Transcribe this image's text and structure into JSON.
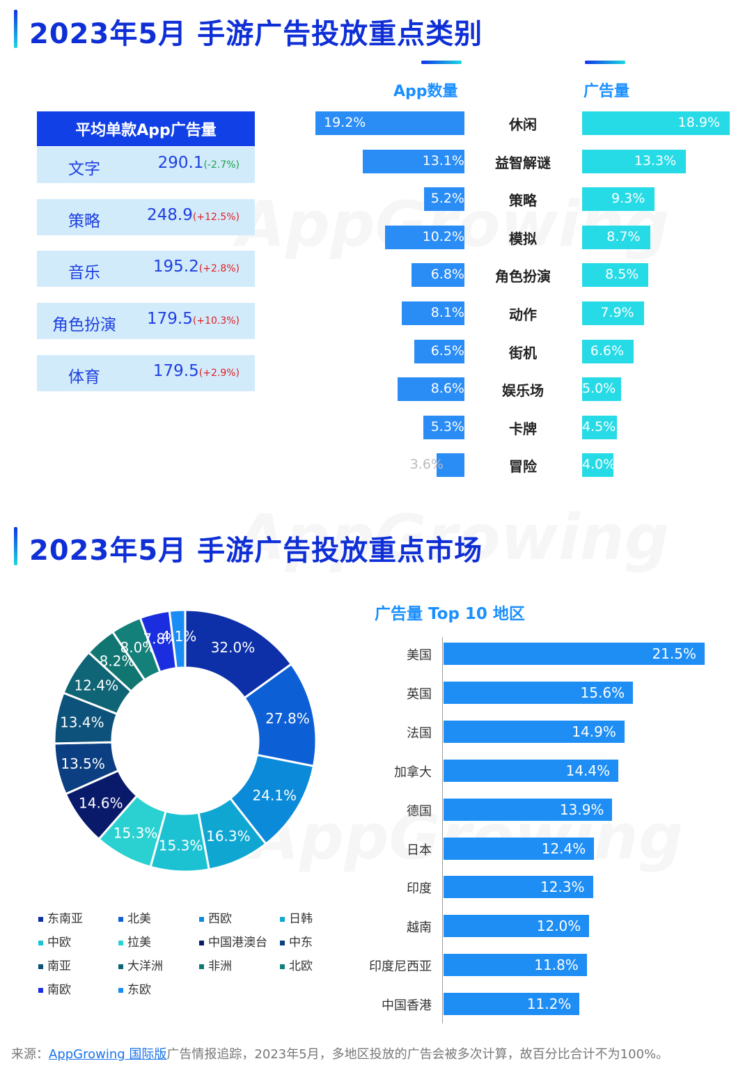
{
  "section1": {
    "title": "2023年5月  手游广告投放重点类别"
  },
  "section2": {
    "title": "2023年5月  手游广告投放重点市场"
  },
  "watermark": "AppGrowing",
  "avg_table": {
    "header": "平均单款App广告量",
    "rows": [
      {
        "name": "文字",
        "value": "290.1",
        "change": "(-2.7%)",
        "color": "#19a34a"
      },
      {
        "name": "策略",
        "value": "248.9",
        "change": "(+12.5%)",
        "color": "#e02020"
      },
      {
        "name": "音乐",
        "value": "195.2",
        "change": "(+2.8%)",
        "color": "#e02020"
      },
      {
        "name": "角色扮演",
        "value": "179.5",
        "change": "(+10.3%)",
        "color": "#e02020"
      },
      {
        "name": "体育",
        "value": "179.5",
        "change": "(+2.9%)",
        "color": "#e02020"
      }
    ]
  },
  "chart_data": [
    {
      "type": "bar",
      "title": "手游广告投放重点类别",
      "categories": [
        "休闲",
        "益智解谜",
        "策略",
        "模拟",
        "角色扮演",
        "动作",
        "街机",
        "娱乐场",
        "卡牌",
        "冒险"
      ],
      "series": [
        {
          "name": "App数量",
          "values": [
            19.2,
            13.1,
            5.2,
            10.2,
            6.8,
            8.1,
            6.5,
            8.6,
            5.3,
            3.6
          ],
          "labels": [
            "19.2%",
            "13.1%",
            "5.2%",
            "10.2%",
            "6.8%",
            "8.1%",
            "6.5%",
            "8.6%",
            "5.3%",
            "3.6%"
          ]
        },
        {
          "name": "广告量",
          "values": [
            18.9,
            13.3,
            9.3,
            8.7,
            8.5,
            7.9,
            6.6,
            5.0,
            4.5,
            4.0
          ],
          "labels": [
            "18.9%",
            "13.3%",
            "9.3%",
            "8.7%",
            "8.5%",
            "7.9%",
            "6.6%",
            "5.0%",
            "4.5%",
            "4.0%"
          ]
        }
      ]
    },
    {
      "type": "pie",
      "title": "手游广告投放重点市场",
      "categories": [
        "东南亚",
        "北美",
        "西欧",
        "日韩",
        "中欧",
        "拉美",
        "中国港澳台",
        "中东",
        "南亚",
        "大洋洲",
        "非洲",
        "北欧",
        "南欧",
        "东欧"
      ],
      "values": [
        32.0,
        27.8,
        24.1,
        16.3,
        15.3,
        15.3,
        14.6,
        13.5,
        13.4,
        12.4,
        8.2,
        8.0,
        7.8,
        4.1
      ],
      "labels": [
        "32.0%",
        "27.8%",
        "24.1%",
        "16.3%",
        "15.3%",
        "15.3%",
        "14.6%",
        "13.5%",
        "13.4%",
        "12.4%",
        "8.2%",
        "8.0%",
        "7.8%",
        "4.1%"
      ],
      "colors": [
        "#0d2fa8",
        "#0d5fd6",
        "#0a8ad8",
        "#0fa6d2",
        "#1cc2d2",
        "#2bd0d0",
        "#0a1a6b",
        "#0c3f82",
        "#0d527a",
        "#0f6476",
        "#117672",
        "#13807a",
        "#1a2ee0",
        "#1a8cf5"
      ]
    },
    {
      "type": "bar",
      "title": "广告量 Top 10 地区",
      "categories": [
        "美国",
        "英国",
        "法国",
        "加拿大",
        "德国",
        "日本",
        "印度",
        "越南",
        "印度尼西亚",
        "中国香港"
      ],
      "values": [
        21.5,
        15.6,
        14.9,
        14.4,
        13.9,
        12.4,
        12.3,
        12.0,
        11.8,
        11.2
      ],
      "labels": [
        "21.5%",
        "15.6%",
        "14.9%",
        "14.4%",
        "13.9%",
        "12.4%",
        "12.3%",
        "12.0%",
        "11.8%",
        "11.2%"
      ]
    }
  ],
  "footer": {
    "prefix": "来源：",
    "link": "AppGrowing 国际版",
    "suffix": "广告情报追踪，2023年5月，多地区投放的广告会被多次计算，故百分比合计不为100%。"
  }
}
